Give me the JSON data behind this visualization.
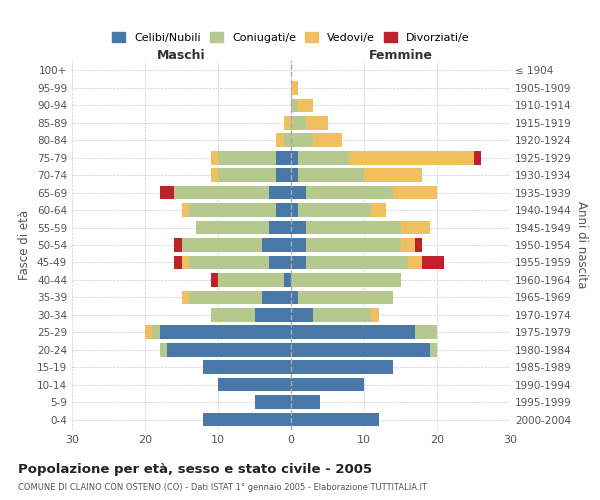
{
  "age_groups": [
    "0-4",
    "5-9",
    "10-14",
    "15-19",
    "20-24",
    "25-29",
    "30-34",
    "35-39",
    "40-44",
    "45-49",
    "50-54",
    "55-59",
    "60-64",
    "65-69",
    "70-74",
    "75-79",
    "80-84",
    "85-89",
    "90-94",
    "95-99",
    "100+"
  ],
  "birth_years": [
    "2000-2004",
    "1995-1999",
    "1990-1994",
    "1985-1989",
    "1980-1984",
    "1975-1979",
    "1970-1974",
    "1965-1969",
    "1960-1964",
    "1955-1959",
    "1950-1954",
    "1945-1949",
    "1940-1944",
    "1935-1939",
    "1930-1934",
    "1925-1929",
    "1920-1924",
    "1915-1919",
    "1910-1914",
    "1905-1909",
    "≤ 1904"
  ],
  "colors": {
    "celibe": "#4878a8",
    "coniugato": "#b5c98e",
    "vedovo": "#f0c060",
    "divorziato": "#c0202a"
  },
  "maschi": {
    "celibe": [
      12,
      5,
      10,
      12,
      17,
      18,
      5,
      4,
      1,
      3,
      4,
      3,
      2,
      3,
      2,
      2,
      0,
      0,
      0,
      0,
      0
    ],
    "coniugato": [
      0,
      0,
      0,
      0,
      1,
      1,
      6,
      10,
      9,
      11,
      11,
      10,
      12,
      13,
      8,
      8,
      1,
      0,
      0,
      0,
      0
    ],
    "vedovo": [
      0,
      0,
      0,
      0,
      0,
      1,
      0,
      1,
      0,
      1,
      0,
      0,
      1,
      0,
      1,
      1,
      1,
      1,
      0,
      0,
      0
    ],
    "divorziato": [
      0,
      0,
      0,
      0,
      0,
      0,
      0,
      0,
      1,
      1,
      1,
      0,
      0,
      2,
      0,
      0,
      0,
      0,
      0,
      0,
      0
    ]
  },
  "femmine": {
    "celibe": [
      12,
      4,
      10,
      14,
      19,
      17,
      3,
      1,
      0,
      2,
      2,
      2,
      1,
      2,
      1,
      1,
      0,
      0,
      0,
      0,
      0
    ],
    "coniugato": [
      0,
      0,
      0,
      0,
      1,
      3,
      8,
      13,
      15,
      14,
      13,
      13,
      10,
      12,
      9,
      7,
      3,
      2,
      1,
      0,
      0
    ],
    "vedovo": [
      0,
      0,
      0,
      0,
      0,
      0,
      1,
      0,
      0,
      2,
      2,
      4,
      2,
      6,
      8,
      17,
      4,
      3,
      2,
      1,
      0
    ],
    "divorziato": [
      0,
      0,
      0,
      0,
      0,
      0,
      0,
      0,
      0,
      3,
      1,
      0,
      0,
      0,
      0,
      1,
      0,
      0,
      0,
      0,
      0
    ]
  },
  "xlim": 30,
  "title": "Popolazione per età, sesso e stato civile - 2005",
  "subtitle": "COMUNE DI CLAINO CON OSTENO (CO) - Dati ISTAT 1° gennaio 2005 - Elaborazione TUTTITALIA.IT",
  "xlabel_left": "Maschi",
  "xlabel_right": "Femmine",
  "ylabel_left": "Fasce di età",
  "ylabel_right": "Anni di nascita",
  "legend_labels": [
    "Celibi/Nubili",
    "Coniugati/e",
    "Vedovi/e",
    "Divorziati/e"
  ],
  "background_color": "#ffffff",
  "grid_color": "#cccccc"
}
